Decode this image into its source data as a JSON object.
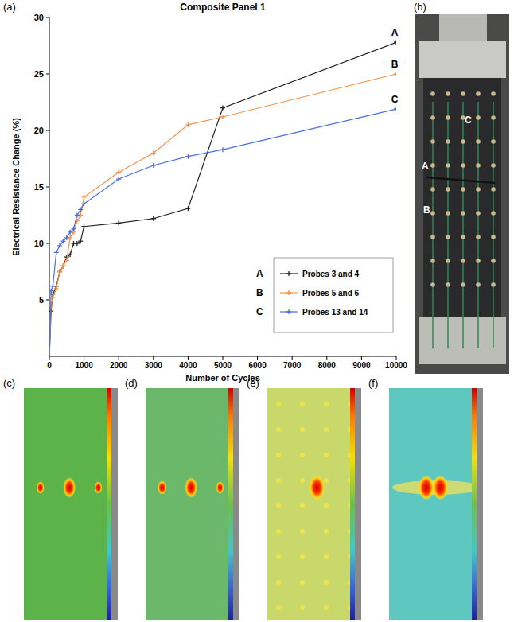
{
  "chart_data": {
    "type": "line",
    "title": "Composite Panel 1",
    "x_label": "Number of Cycles",
    "y_label": "Electrical Resistance Change (%)",
    "x": [
      0,
      50,
      100,
      200,
      300,
      400,
      500,
      600,
      700,
      800,
      900,
      1000,
      2000,
      3000,
      4000,
      5000,
      10000
    ],
    "xlim": [
      0,
      10000
    ],
    "xticks": [
      0,
      1000,
      2000,
      3000,
      4000,
      5000,
      6000,
      7000,
      8000,
      9000,
      10000
    ],
    "ylim": [
      0,
      30
    ],
    "yticks": [
      5,
      10,
      15,
      20,
      25,
      30
    ],
    "legend": "lower right",
    "marker": "plus",
    "series": [
      {
        "name": "Probes 3 and 4",
        "label": "A",
        "color": "#222222",
        "values": [
          0,
          4,
          5.5,
          6.2,
          7.5,
          8,
          8.8,
          9,
          10,
          10,
          10.2,
          11.5,
          11.8,
          12.2,
          13.1,
          22,
          27.8
        ]
      },
      {
        "name": "Probes 5 and 6",
        "label": "B",
        "color": "#f5924a",
        "values": [
          0,
          4.5,
          5.2,
          6,
          7.5,
          8,
          8.5,
          10.5,
          11,
          12,
          12.5,
          14.1,
          16.3,
          18,
          20.5,
          21.2,
          25
        ]
      },
      {
        "name": "Probes 13 and 14",
        "label": "C",
        "color": "#4a6fd8",
        "values": [
          0,
          5.8,
          6.2,
          9.2,
          9.8,
          10.2,
          10.5,
          11,
          11.3,
          12.5,
          13,
          13.5,
          15.7,
          16.9,
          17.7,
          18.3,
          21.9
        ]
      }
    ]
  },
  "panels": {
    "labels": [
      "(a)",
      "(b)",
      "(c)",
      "(d)",
      "(e)",
      "(f)"
    ],
    "photo_labels": [
      "A",
      "B",
      "C"
    ]
  }
}
